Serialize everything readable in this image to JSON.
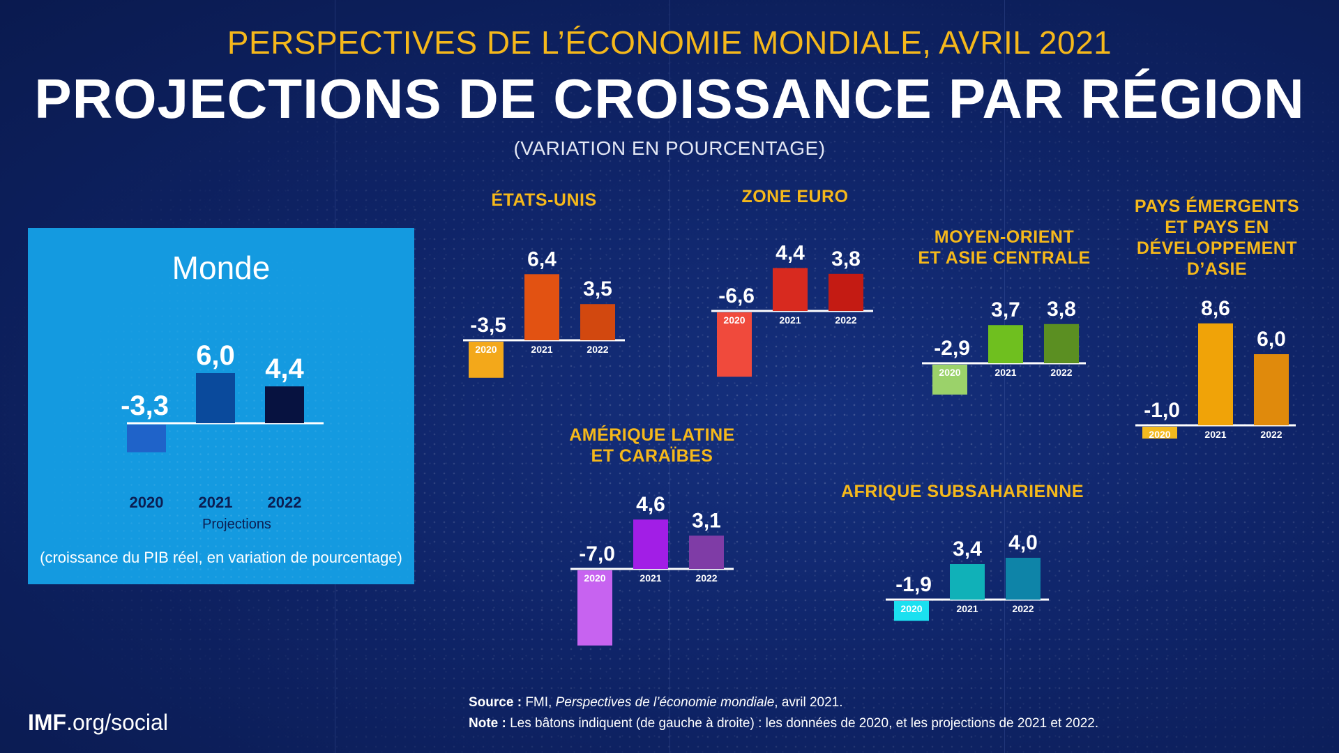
{
  "header": {
    "supertitle": "PERSPECTIVES DE L’ÉCONOMIE MONDIALE, AVRIL 2021",
    "title": "PROJECTIONS DE CROISSANCE PAR RÉGION",
    "subtitle": "(VARIATION EN POURCENTAGE)"
  },
  "world_panel": {
    "name": "Monde",
    "projections_label": "Projections",
    "caption": "(croissance du PIB réel, en variation de pourcentage)"
  },
  "region_titles": {
    "us": "ÉTATS-UNIS",
    "euro": "ZONE EURO",
    "meca_line1": "MOYEN-ORIENT",
    "meca_line2": "ET ASIE CENTRALE",
    "asia_line1": "PAYS ÉMERGENTS",
    "asia_line2": "ET PAYS EN",
    "asia_line3": "DÉVELOPPEMENT",
    "asia_line4": "D’ASIE",
    "latam_line1": "AMÉRIQUE LATINE",
    "latam_line2": "ET CARAÏBES",
    "ssa": "AFRIQUE SUBSAHARIENNE"
  },
  "footer": {
    "source_label": "Source :",
    "source_text_pre": "FMI, ",
    "source_text_italic": "Perspectives de l’économie mondiale",
    "source_text_post": ", avril 2021.",
    "note_label": "Note :",
    "note_text": "Les bâtons indiquent (de gauche à droite) : les données de 2020, et les projections de 2021 et 2022.",
    "brand_bold": "IMF",
    "brand_rest": ".org/social"
  },
  "chart_data": [
    {
      "type": "bar",
      "id": "world",
      "title": "Monde",
      "categories": [
        "2020",
        "2021",
        "2022"
      ],
      "values": [
        -3.3,
        6.0,
        4.4
      ],
      "value_labels": [
        "-3,3",
        "6,0",
        "4,4"
      ],
      "colors": [
        "#1f63c9",
        "#0a4a9c",
        "#071240"
      ]
    },
    {
      "type": "bar",
      "id": "us",
      "title": "ÉTATS-UNIS",
      "categories": [
        "2020",
        "2021",
        "2022"
      ],
      "values": [
        -3.5,
        6.4,
        3.5
      ],
      "value_labels": [
        "-3,5",
        "6,4",
        "3,5"
      ],
      "colors": [
        "#f3a81a",
        "#e25212",
        "#d2480f"
      ]
    },
    {
      "type": "bar",
      "id": "euro",
      "title": "ZONE EURO",
      "categories": [
        "2020",
        "2021",
        "2022"
      ],
      "values": [
        -6.6,
        4.4,
        3.8
      ],
      "value_labels": [
        "-6,6",
        "4,4",
        "3,8"
      ],
      "colors": [
        "#f04a3c",
        "#d82a1f",
        "#c41b13"
      ]
    },
    {
      "type": "bar",
      "id": "meca",
      "title": "MOYEN-ORIENT ET ASIE CENTRALE",
      "categories": [
        "2020",
        "2021",
        "2022"
      ],
      "values": [
        -2.9,
        3.7,
        3.8
      ],
      "value_labels": [
        "-2,9",
        "3,7",
        "3,8"
      ],
      "colors": [
        "#9bd26a",
        "#6fbf1f",
        "#5b8f22"
      ]
    },
    {
      "type": "bar",
      "id": "asia",
      "title": "PAYS ÉMERGENTS ET PAYS EN DÉVELOPPEMENT D’ASIE",
      "categories": [
        "2020",
        "2021",
        "2022"
      ],
      "values": [
        -1.0,
        8.6,
        6.0
      ],
      "value_labels": [
        "-1,0",
        "8,6",
        "6,0"
      ],
      "colors": [
        "#f3ba1e",
        "#f0a308",
        "#e08a0c"
      ]
    },
    {
      "type": "bar",
      "id": "latam",
      "title": "AMÉRIQUE LATINE ET CARAÏBES",
      "categories": [
        "2020",
        "2021",
        "2022"
      ],
      "values": [
        -7.0,
        4.6,
        3.1
      ],
      "value_labels": [
        "-7,0",
        "4,6",
        "3,1"
      ],
      "colors": [
        "#c763f0",
        "#a21ee6",
        "#7f3ca6"
      ]
    },
    {
      "type": "bar",
      "id": "ssa",
      "title": "AFRIQUE SUBSAHARIENNE",
      "categories": [
        "2020",
        "2021",
        "2022"
      ],
      "values": [
        -1.9,
        3.4,
        4.0
      ],
      "value_labels": [
        "-1,9",
        "3,4",
        "4,0"
      ],
      "colors": [
        "#1be0f0",
        "#10b1b8",
        "#0e84a8"
      ]
    }
  ]
}
